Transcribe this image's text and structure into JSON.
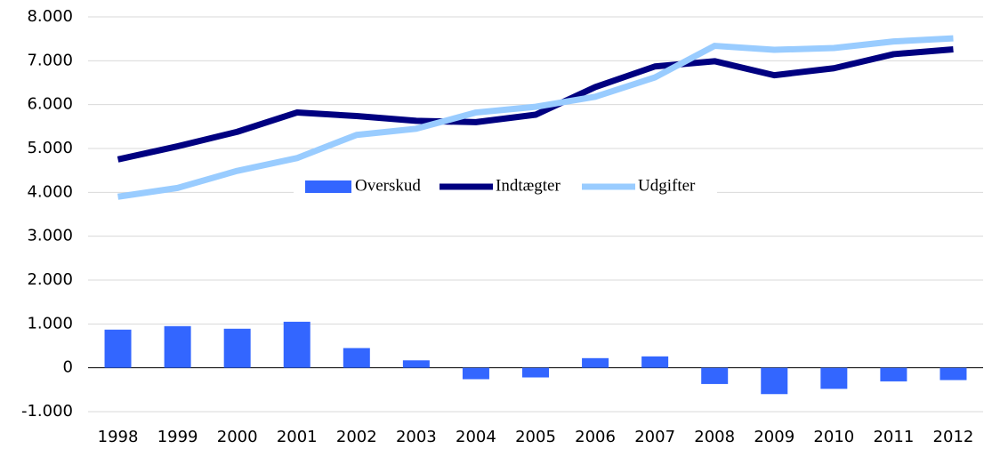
{
  "chart_data": {
    "type": "bar_line",
    "categories": [
      "1998",
      "1999",
      "2000",
      "2001",
      "2002",
      "2003",
      "2004",
      "2005",
      "2006",
      "2007",
      "2008",
      "2009",
      "2010",
      "2011",
      "2012"
    ],
    "series": [
      {
        "name": "Overskud",
        "type": "bar",
        "color": "#3366ff",
        "values": [
          870,
          950,
          890,
          1050,
          450,
          170,
          -260,
          -220,
          220,
          260,
          -370,
          -600,
          -480,
          -310,
          -280
        ]
      },
      {
        "name": "Indtægter",
        "type": "line",
        "color": "#000080",
        "values": [
          4750,
          5050,
          5380,
          5820,
          5740,
          5630,
          5600,
          5770,
          6400,
          6870,
          6990,
          6670,
          6830,
          7150,
          7260
        ]
      },
      {
        "name": "Udgifter",
        "type": "line",
        "color": "#99ccff",
        "values": [
          3900,
          4100,
          4490,
          4780,
          5310,
          5450,
          5820,
          5950,
          6180,
          6620,
          7340,
          7250,
          7290,
          7440,
          7510
        ]
      }
    ],
    "ylim": [
      -1000,
      8000
    ],
    "yticks": [
      {
        "value": -1000,
        "label": "-1.000"
      },
      0,
      {
        "value": 1000,
        "label": "1.000"
      },
      {
        "value": 2000,
        "label": "2.000"
      },
      {
        "value": 3000,
        "label": "3.000"
      },
      {
        "value": 4000,
        "label": "4.000"
      },
      {
        "value": 5000,
        "label": "5.000"
      },
      {
        "value": 6000,
        "label": "6.000"
      },
      {
        "value": 7000,
        "label": "7.000"
      },
      {
        "value": 8000,
        "label": "8.000"
      }
    ],
    "grid": true,
    "legend": "center"
  }
}
